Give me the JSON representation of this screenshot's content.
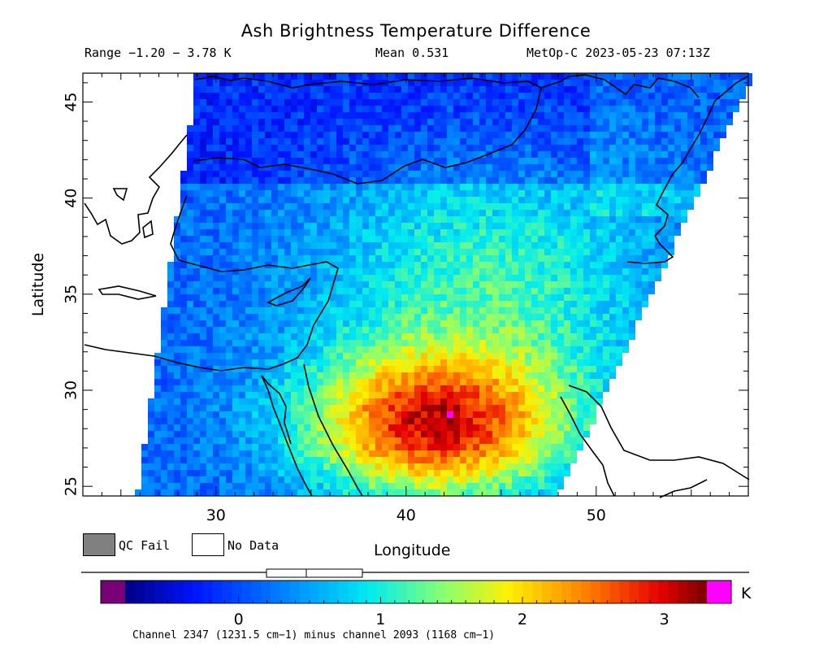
{
  "header": {
    "title": "Ash Brightness Temperature Difference",
    "range": "Range −1.20 − 3.78 K",
    "mean": "Mean 0.531",
    "satellite_time": "MetOp-C 2023-05-23 07:13Z"
  },
  "map": {
    "xlabel": "Longitude",
    "ylabel": "Latitude",
    "lon_range": [
      23,
      58
    ],
    "lat_range": [
      24.5,
      46.5
    ],
    "x_ticks": [
      30,
      40,
      50
    ],
    "y_ticks": [
      25,
      30,
      35,
      40,
      45
    ],
    "no_data_color": "#ffffff",
    "qc_fail_color": "#808080"
  },
  "legend": {
    "qc_fail_label": "QC Fail",
    "no_data_label": "No Data"
  },
  "colorbar": {
    "unit": "K",
    "min": -0.8,
    "max": 3.3,
    "ticks": [
      0,
      1,
      2,
      3
    ],
    "under_color": "#7a0078",
    "over_color": "#ff00ff",
    "footnote": "Channel 2347 (1231.5 cm−1) minus channel 2093 (1168 cm−1)"
  }
}
